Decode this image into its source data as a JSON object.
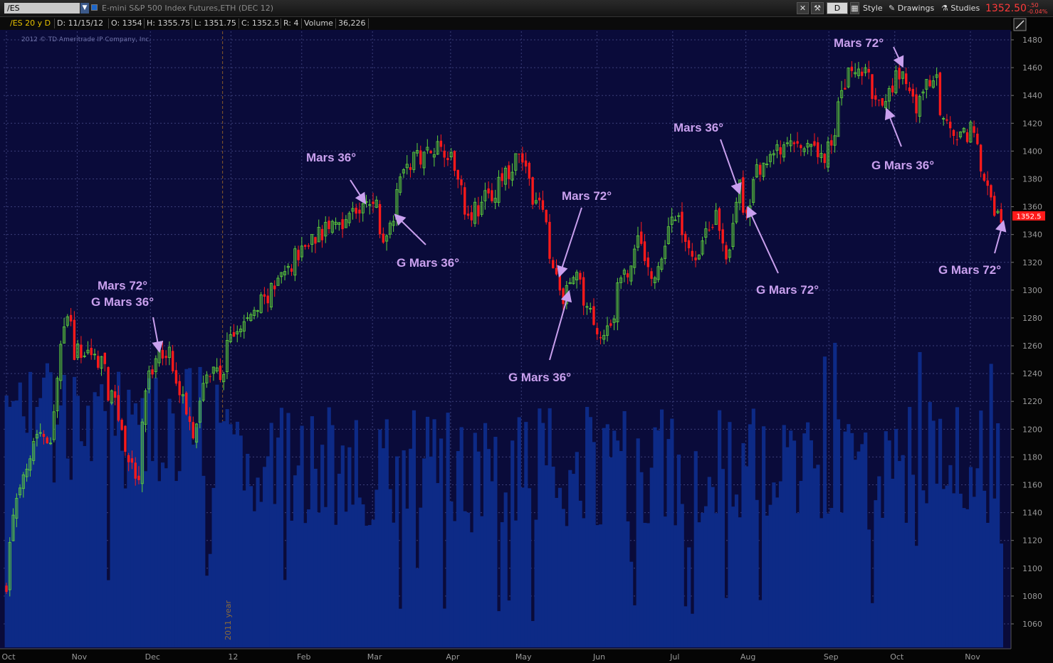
{
  "toolbar": {
    "symbol": "/ES",
    "description": "E-mini S&P 500 Index Futures,ETH (DEC 12)",
    "period_button": "D",
    "style_label": "Style",
    "drawings_label": "Drawings",
    "studies_label": "Studies",
    "last_price": "1352.50",
    "change": "-.50",
    "change_pct": "-0.04%"
  },
  "infobar": {
    "symbol_period": "/ES 20 y D",
    "date": "D: 11/15/12",
    "open": "O: 1354",
    "high": "H: 1355.75",
    "low": "L: 1351.75",
    "close": "C: 1352.5",
    "range": "R: 4",
    "volume_label": "Volume",
    "volume_value": "36,226"
  },
  "copyright": "2012 © TD Ameritrade IP Company, Inc.",
  "year_divider_label": "2011 year",
  "price_tag": "1352.5",
  "colors": {
    "background": "#0a0b3a",
    "up_candle": "#5fd23a",
    "down_candle": "#ff1a1a",
    "volume": "#0d2a86",
    "annotation": "#c9a0ee",
    "grid": "#3c3f7a"
  },
  "chart_data": {
    "type": "candlestick",
    "title": "E-mini S&P 500 Index Futures,ETH (DEC 12)",
    "ylim": [
      1045,
      1490
    ],
    "y_ticks": [
      1060,
      1080,
      1100,
      1120,
      1140,
      1160,
      1180,
      1200,
      1220,
      1240,
      1260,
      1280,
      1300,
      1320,
      1340,
      1360,
      1380,
      1400,
      1420,
      1440,
      1460,
      1480
    ],
    "x_labels": [
      {
        "label": "Oct",
        "date": "2011-10-03"
      },
      {
        "label": "Nov",
        "date": "2011-11-01"
      },
      {
        "label": "Dec",
        "date": "2011-12-01"
      },
      {
        "label": "12",
        "date": "2012-01-03"
      },
      {
        "label": "Feb",
        "date": "2012-02-01"
      },
      {
        "label": "Mar",
        "date": "2012-03-01"
      },
      {
        "label": "Apr",
        "date": "2012-04-02"
      },
      {
        "label": "May",
        "date": "2012-05-01"
      },
      {
        "label": "Jun",
        "date": "2012-06-01"
      },
      {
        "label": "Jul",
        "date": "2012-07-02"
      },
      {
        "label": "Aug",
        "date": "2012-08-01"
      },
      {
        "label": "Sep",
        "date": "2012-09-04"
      },
      {
        "label": "Oct",
        "date": "2012-10-01"
      },
      {
        "label": "Nov",
        "date": "2012-11-01"
      }
    ],
    "date_range": [
      "2011-10-03",
      "2012-11-15"
    ],
    "close_path": [
      {
        "date": "2011-10-03",
        "close": 1090
      },
      {
        "date": "2011-10-05",
        "close": 1140
      },
      {
        "date": "2011-10-10",
        "close": 1170
      },
      {
        "date": "2011-10-14",
        "close": 1200
      },
      {
        "date": "2011-10-20",
        "close": 1195
      },
      {
        "date": "2011-10-27",
        "close": 1280
      },
      {
        "date": "2011-10-31",
        "close": 1255
      },
      {
        "date": "2011-11-04",
        "close": 1255
      },
      {
        "date": "2011-11-10",
        "close": 1250
      },
      {
        "date": "2011-11-17",
        "close": 1210
      },
      {
        "date": "2011-11-25",
        "close": 1158
      },
      {
        "date": "2011-11-30",
        "close": 1240
      },
      {
        "date": "2011-12-07",
        "close": 1258
      },
      {
        "date": "2011-12-15",
        "close": 1215
      },
      {
        "date": "2011-12-19",
        "close": 1200
      },
      {
        "date": "2011-12-23",
        "close": 1240
      },
      {
        "date": "2011-12-30",
        "close": 1240
      },
      {
        "date": "2012-01-03",
        "close": 1265
      },
      {
        "date": "2012-01-20",
        "close": 1300
      },
      {
        "date": "2012-02-03",
        "close": 1335
      },
      {
        "date": "2012-02-21",
        "close": 1355
      },
      {
        "date": "2012-03-02",
        "close": 1362
      },
      {
        "date": "2012-03-06",
        "close": 1335
      },
      {
        "date": "2012-03-13",
        "close": 1385
      },
      {
        "date": "2012-03-26",
        "close": 1405
      },
      {
        "date": "2012-04-02",
        "close": 1400
      },
      {
        "date": "2012-04-10",
        "close": 1355
      },
      {
        "date": "2012-04-20",
        "close": 1370
      },
      {
        "date": "2012-05-01",
        "close": 1395
      },
      {
        "date": "2012-05-11",
        "close": 1350
      },
      {
        "date": "2012-05-18",
        "close": 1290
      },
      {
        "date": "2012-05-23",
        "close": 1310
      },
      {
        "date": "2012-06-01",
        "close": 1275
      },
      {
        "date": "2012-06-04",
        "close": 1265
      },
      {
        "date": "2012-06-11",
        "close": 1300
      },
      {
        "date": "2012-06-19",
        "close": 1335
      },
      {
        "date": "2012-06-25",
        "close": 1305
      },
      {
        "date": "2012-07-03",
        "close": 1355
      },
      {
        "date": "2012-07-12",
        "close": 1325
      },
      {
        "date": "2012-07-20",
        "close": 1355
      },
      {
        "date": "2012-07-25",
        "close": 1325
      },
      {
        "date": "2012-07-31",
        "close": 1375
      },
      {
        "date": "2012-08-02",
        "close": 1350
      },
      {
        "date": "2012-08-08",
        "close": 1390
      },
      {
        "date": "2012-08-21",
        "close": 1405
      },
      {
        "date": "2012-09-04",
        "close": 1395
      },
      {
        "date": "2012-09-14",
        "close": 1460
      },
      {
        "date": "2012-09-21",
        "close": 1455
      },
      {
        "date": "2012-09-26",
        "close": 1430
      },
      {
        "date": "2012-10-05",
        "close": 1458
      },
      {
        "date": "2012-10-11",
        "close": 1430
      },
      {
        "date": "2012-10-18",
        "close": 1455
      },
      {
        "date": "2012-10-26",
        "close": 1405
      },
      {
        "date": "2012-11-05",
        "close": 1418
      },
      {
        "date": "2012-11-07",
        "close": 1380
      },
      {
        "date": "2012-11-15",
        "close": 1352.5
      }
    ],
    "volume_series": {
      "name": "Volume",
      "note": "volume histogram in lower pane, no scale shown"
    },
    "annotations": [
      {
        "text": "Mars 72°",
        "date": "2011-11-30"
      },
      {
        "text": "G Mars 36°",
        "date": "2011-12-05"
      },
      {
        "text": "Mars 36°",
        "date": "2012-02-28"
      },
      {
        "text": "G Mars 36°",
        "date": "2012-03-09"
      },
      {
        "text": "Mars 72°",
        "date": "2012-05-16"
      },
      {
        "text": "G Mars 36°",
        "date": "2012-05-21"
      },
      {
        "text": "Mars 36°",
        "date": "2012-07-30"
      },
      {
        "text": "G Mars 72°",
        "date": "2012-08-01"
      },
      {
        "text": "Mars 72°",
        "date": "2012-10-05"
      },
      {
        "text": "G Mars 36°",
        "date": "2012-09-27"
      },
      {
        "text": "G Mars 72°",
        "date": "2012-11-15"
      }
    ]
  }
}
